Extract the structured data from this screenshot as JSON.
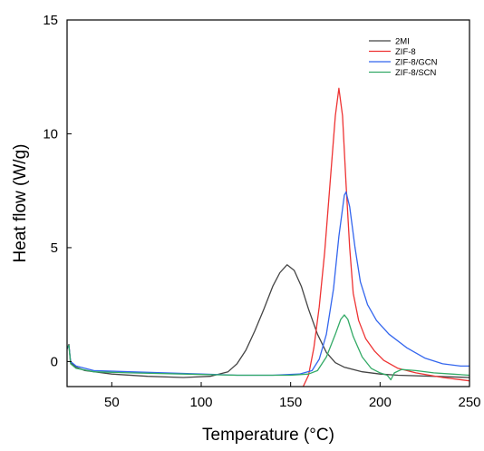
{
  "chart_data": {
    "type": "line",
    "title": "",
    "xlabel": "Temperature (°C)",
    "ylabel": "Heat flow (W/g)",
    "xlim": [
      25,
      250
    ],
    "ylim": [
      -1.1,
      15
    ],
    "x_ticks": [
      50,
      100,
      150,
      200,
      250
    ],
    "y_ticks": [
      0,
      5,
      10,
      15
    ],
    "grid": false,
    "legend_position": "top-right",
    "series": [
      {
        "name": "2MI",
        "color": "#444444",
        "points": [
          [
            25,
            0.55
          ],
          [
            26,
            0.75
          ],
          [
            27,
            -0.05
          ],
          [
            30,
            -0.25
          ],
          [
            35,
            -0.4
          ],
          [
            50,
            -0.55
          ],
          [
            70,
            -0.65
          ],
          [
            90,
            -0.7
          ],
          [
            105,
            -0.65
          ],
          [
            115,
            -0.45
          ],
          [
            120,
            -0.1
          ],
          [
            125,
            0.5
          ],
          [
            130,
            1.35
          ],
          [
            135,
            2.3
          ],
          [
            140,
            3.3
          ],
          [
            144,
            3.9
          ],
          [
            148,
            4.25
          ],
          [
            152,
            4.0
          ],
          [
            156,
            3.3
          ],
          [
            160,
            2.3
          ],
          [
            165,
            1.2
          ],
          [
            170,
            0.4
          ],
          [
            175,
            -0.05
          ],
          [
            180,
            -0.25
          ],
          [
            190,
            -0.45
          ],
          [
            200,
            -0.55
          ],
          [
            210,
            -0.6
          ],
          [
            230,
            -0.65
          ],
          [
            250,
            -0.7
          ]
        ]
      },
      {
        "name": "ZIF-8",
        "color": "#ee3333",
        "points": [
          [
            157,
            -1.1
          ],
          [
            160,
            -0.6
          ],
          [
            163,
            0.6
          ],
          [
            166,
            2.4
          ],
          [
            169,
            4.8
          ],
          [
            172,
            7.8
          ],
          [
            175,
            10.8
          ],
          [
            177,
            12.0
          ],
          [
            179,
            10.8
          ],
          [
            181,
            7.8
          ],
          [
            183,
            5.0
          ],
          [
            185,
            3.0
          ],
          [
            188,
            1.8
          ],
          [
            192,
            1.0
          ],
          [
            197,
            0.45
          ],
          [
            202,
            0.05
          ],
          [
            210,
            -0.3
          ],
          [
            220,
            -0.5
          ],
          [
            235,
            -0.7
          ],
          [
            250,
            -0.85
          ]
        ]
      },
      {
        "name": "ZIF-8/GCN",
        "color": "#3366ee",
        "points": [
          [
            25,
            0.6
          ],
          [
            26,
            0.7
          ],
          [
            27,
            0.0
          ],
          [
            30,
            -0.2
          ],
          [
            40,
            -0.4
          ],
          [
            60,
            -0.45
          ],
          [
            80,
            -0.5
          ],
          [
            100,
            -0.55
          ],
          [
            120,
            -0.6
          ],
          [
            140,
            -0.6
          ],
          [
            155,
            -0.55
          ],
          [
            162,
            -0.4
          ],
          [
            166,
            0.1
          ],
          [
            170,
            1.2
          ],
          [
            174,
            3.2
          ],
          [
            177,
            5.5
          ],
          [
            180,
            7.3
          ],
          [
            181,
            7.45
          ],
          [
            183,
            6.8
          ],
          [
            186,
            5.0
          ],
          [
            189,
            3.5
          ],
          [
            193,
            2.5
          ],
          [
            198,
            1.8
          ],
          [
            205,
            1.2
          ],
          [
            215,
            0.6
          ],
          [
            225,
            0.15
          ],
          [
            235,
            -0.1
          ],
          [
            245,
            -0.2
          ],
          [
            250,
            -0.2
          ]
        ]
      },
      {
        "name": "ZIF-8/SCN",
        "color": "#33aa66",
        "points": [
          [
            25,
            0.65
          ],
          [
            26,
            0.7
          ],
          [
            27,
            -0.1
          ],
          [
            30,
            -0.3
          ],
          [
            40,
            -0.45
          ],
          [
            60,
            -0.5
          ],
          [
            90,
            -0.55
          ],
          [
            120,
            -0.6
          ],
          [
            150,
            -0.6
          ],
          [
            160,
            -0.55
          ],
          [
            165,
            -0.4
          ],
          [
            170,
            0.2
          ],
          [
            175,
            1.2
          ],
          [
            178,
            1.85
          ],
          [
            180,
            2.05
          ],
          [
            182,
            1.85
          ],
          [
            185,
            1.1
          ],
          [
            190,
            0.2
          ],
          [
            195,
            -0.3
          ],
          [
            200,
            -0.5
          ],
          [
            204,
            -0.6
          ],
          [
            206,
            -0.8
          ],
          [
            208,
            -0.5
          ],
          [
            212,
            -0.35
          ],
          [
            220,
            -0.4
          ],
          [
            230,
            -0.5
          ],
          [
            240,
            -0.55
          ],
          [
            250,
            -0.6
          ]
        ]
      }
    ]
  }
}
